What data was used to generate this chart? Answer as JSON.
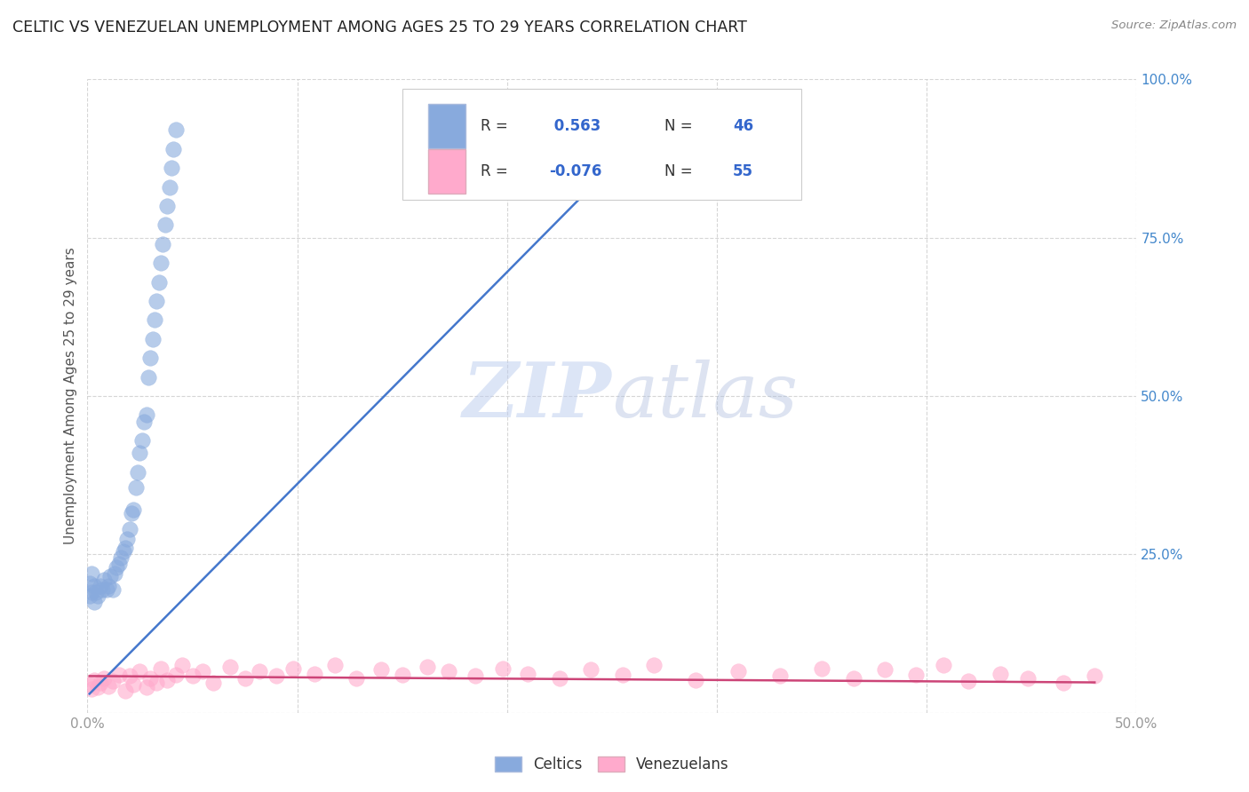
{
  "title": "CELTIC VS VENEZUELAN UNEMPLOYMENT AMONG AGES 25 TO 29 YEARS CORRELATION CHART",
  "source_text": "Source: ZipAtlas.com",
  "ylabel": "Unemployment Among Ages 25 to 29 years",
  "xlim": [
    0.0,
    0.5
  ],
  "ylim": [
    0.0,
    1.0
  ],
  "xticks": [
    0.0,
    0.1,
    0.2,
    0.3,
    0.4,
    0.5
  ],
  "yticks": [
    0.0,
    0.25,
    0.5,
    0.75,
    1.0
  ],
  "xticklabels": [
    "0.0%",
    "",
    "",
    "",
    "",
    "50.0%"
  ],
  "yticklabels_right": [
    "",
    "25.0%",
    "50.0%",
    "75.0%",
    "100.0%"
  ],
  "blue_color": "#88AADD",
  "pink_color": "#FFAACC",
  "blue_line_color": "#4477CC",
  "pink_line_color": "#CC4477",
  "blue_R": 0.563,
  "blue_N": 46,
  "pink_R": -0.076,
  "pink_N": 55,
  "background_color": "#ffffff",
  "grid_color": "#cccccc",
  "watermark_color": "#CCDDF0",
  "blue_scatter_x": [
    0.001,
    0.001,
    0.002,
    0.002,
    0.003,
    0.003,
    0.004,
    0.005,
    0.006,
    0.007,
    0.008,
    0.009,
    0.01,
    0.011,
    0.012,
    0.013,
    0.014,
    0.015,
    0.016,
    0.017,
    0.018,
    0.019,
    0.02,
    0.021,
    0.022,
    0.023,
    0.024,
    0.025,
    0.026,
    0.027,
    0.028,
    0.029,
    0.03,
    0.031,
    0.032,
    0.033,
    0.034,
    0.035,
    0.036,
    0.037,
    0.038,
    0.039,
    0.04,
    0.041,
    0.042,
    0.282
  ],
  "blue_scatter_y": [
    0.205,
    0.185,
    0.22,
    0.19,
    0.2,
    0.175,
    0.19,
    0.185,
    0.2,
    0.195,
    0.21,
    0.195,
    0.2,
    0.215,
    0.195,
    0.22,
    0.23,
    0.235,
    0.245,
    0.255,
    0.26,
    0.275,
    0.29,
    0.315,
    0.32,
    0.355,
    0.38,
    0.41,
    0.43,
    0.46,
    0.47,
    0.53,
    0.56,
    0.59,
    0.62,
    0.65,
    0.68,
    0.71,
    0.74,
    0.77,
    0.8,
    0.83,
    0.86,
    0.89,
    0.92,
    0.97
  ],
  "pink_scatter_x": [
    0.001,
    0.002,
    0.003,
    0.005,
    0.006,
    0.008,
    0.01,
    0.012,
    0.015,
    0.018,
    0.02,
    0.022,
    0.025,
    0.028,
    0.03,
    0.033,
    0.035,
    0.038,
    0.042,
    0.045,
    0.05,
    0.055,
    0.06,
    0.068,
    0.075,
    0.082,
    0.09,
    0.098,
    0.108,
    0.118,
    0.128,
    0.14,
    0.15,
    0.162,
    0.172,
    0.185,
    0.198,
    0.21,
    0.225,
    0.24,
    0.255,
    0.27,
    0.29,
    0.31,
    0.33,
    0.35,
    0.365,
    0.38,
    0.395,
    0.408,
    0.42,
    0.435,
    0.448,
    0.465,
    0.48
  ],
  "pink_scatter_y": [
    0.045,
    0.038,
    0.052,
    0.04,
    0.048,
    0.055,
    0.042,
    0.05,
    0.06,
    0.035,
    0.058,
    0.045,
    0.065,
    0.04,
    0.055,
    0.048,
    0.07,
    0.052,
    0.06,
    0.075,
    0.058,
    0.065,
    0.048,
    0.072,
    0.055,
    0.065,
    0.058,
    0.07,
    0.062,
    0.075,
    0.055,
    0.068,
    0.06,
    0.072,
    0.065,
    0.058,
    0.07,
    0.062,
    0.055,
    0.068,
    0.06,
    0.075,
    0.052,
    0.065,
    0.058,
    0.07,
    0.055,
    0.068,
    0.06,
    0.075,
    0.05,
    0.062,
    0.055,
    0.048,
    0.058
  ],
  "blue_line_x": [
    0.001,
    0.282
  ],
  "blue_line_y": [
    0.03,
    0.97
  ],
  "pink_line_x": [
    0.001,
    0.48
  ],
  "pink_line_y": [
    0.058,
    0.048
  ]
}
